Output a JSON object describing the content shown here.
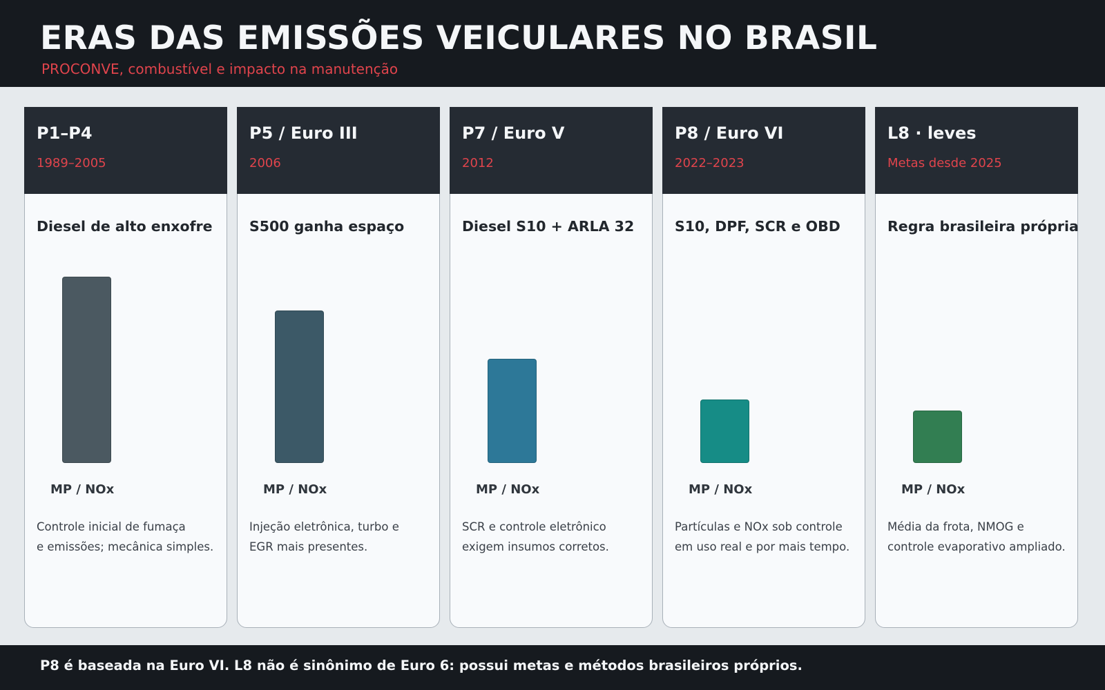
{
  "header": {
    "title": "ERAS DAS EMISSÕES VEICULARES NO BRASIL",
    "subtitle": "PROCONVE, combustível e impacto na manutenção"
  },
  "footer": {
    "note": "P8 é baseada na Euro VI. L8 não é sinônimo de Euro 6: possui metas e métodos brasileiros próprios."
  },
  "chart_data": {
    "type": "bar",
    "title": "ERAS DAS EMISSÕES VEICULARES NO BRASIL",
    "subtitle": "PROCONVE, combustível e impacto na manutenção",
    "categories": [
      "P1–P4",
      "P5 / Euro III",
      "P7 / Euro V",
      "P8 / Euro VI",
      "L8 · leves"
    ],
    "dates": [
      "1989–2005",
      "2006",
      "2012",
      "2022–2023",
      "Metas desde 2025"
    ],
    "headings": [
      "Diesel de alto enxofre",
      "S500 ganha espaço",
      "Diesel S10 + ARLA 32",
      "S10, DPF, SCR e OBD",
      "Regra brasileira própria"
    ],
    "series": [
      {
        "name": "MP / NOx",
        "values": [
          100,
          82,
          56,
          34,
          28
        ]
      }
    ],
    "bar_label": "MP / NOx",
    "colors": [
      "#4b5961",
      "#3c5967",
      "#2d7898",
      "#168c86",
      "#327e52"
    ],
    "descriptions": [
      [
        "Controle inicial de fumaça",
        "e emissões; mecânica simples."
      ],
      [
        "Injeção eletrônica, turbo e",
        "EGR mais presentes."
      ],
      [
        "SCR e controle eletrônico",
        "exigem insumos corretos."
      ],
      [
        "Partículas e NOx sob controle",
        "em uso real e por mais tempo."
      ],
      [
        "Média da frota, NMOG e",
        "controle evaporativo ampliado."
      ]
    ],
    "ylim": [
      0,
      100
    ],
    "grid": false,
    "legend": "none"
  }
}
